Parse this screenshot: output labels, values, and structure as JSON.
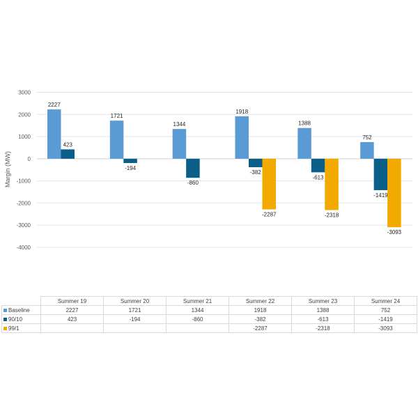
{
  "chart_data": {
    "type": "bar",
    "title": "",
    "xlabel": "",
    "ylabel": "Margin (MW)",
    "ylim": [
      -4000,
      3000
    ],
    "yticks": [
      3000,
      2000,
      1000,
      0,
      -1000,
      -2000,
      -3000,
      -4000
    ],
    "grid": true,
    "legend": "data-table-bottom",
    "categories": [
      "Summer 19",
      "Summer 20",
      "Summer 21",
      "Summer 22",
      "Summer 23",
      "Summer 24"
    ],
    "series": [
      {
        "name": "Baseline",
        "color": "#5B9BD5",
        "values": [
          2227,
          1721,
          1344,
          1918,
          1388,
          752
        ]
      },
      {
        "name": "90/10",
        "color": "#0B5E88",
        "values": [
          423,
          -194,
          -860,
          -382,
          -613,
          -1419
        ]
      },
      {
        "name": "99/1",
        "color": "#F2A900",
        "values": [
          null,
          null,
          null,
          -2287,
          -2318,
          -3093
        ]
      }
    ]
  }
}
